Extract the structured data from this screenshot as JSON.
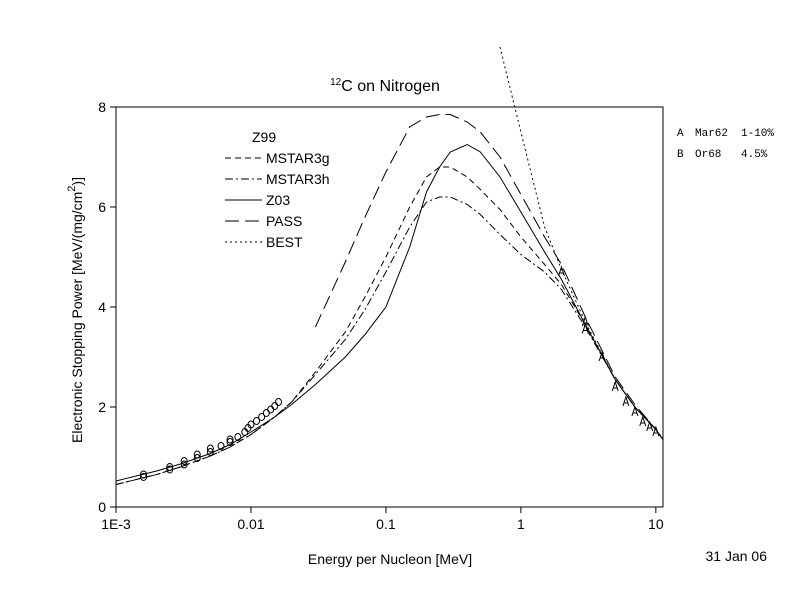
{
  "chart_data": {
    "type": "line",
    "title_superscript": "12",
    "title": "C on Nitrogen",
    "xlabel": "Energy per Nucleon [MeV]",
    "ylabel": "Electronic Stopping Power [MeV/(mg/cm",
    "ylabel_superscript": "2",
    "ylabel_end": ")]",
    "date": "31 Jan 06",
    "legend_title": "Z99",
    "xscale": "log",
    "xlim": [
      0.001,
      11.3
    ],
    "ylim": [
      0,
      8
    ],
    "xticks": [
      {
        "value": 0.001,
        "label": "1E-3"
      },
      0.01,
      0.1,
      1,
      10
    ],
    "yticks": [
      0,
      2,
      4,
      6,
      8
    ],
    "x": [
      0.001,
      0.002,
      0.003,
      0.005,
      0.007,
      0.01,
      0.015,
      0.02,
      0.03,
      0.05,
      0.07,
      0.1,
      0.15,
      0.2,
      0.25,
      0.3,
      0.4,
      0.5,
      0.7,
      1,
      1.5,
      2,
      3,
      5,
      7,
      10,
      11.3
    ],
    "series": [
      {
        "name": "MSTAR3g",
        "color": "#000000",
        "dash": "6,4",
        "values": [
          0.45,
          0.65,
          0.8,
          1.02,
          1.2,
          1.45,
          1.8,
          2.1,
          2.7,
          3.5,
          4.2,
          5.0,
          6.0,
          6.6,
          6.8,
          6.8,
          6.6,
          6.35,
          5.95,
          5.4,
          4.85,
          4.45,
          3.65,
          2.55,
          2.0,
          1.55,
          1.35
        ]
      },
      {
        "name": "MSTAR3h",
        "color": "#000000",
        "dash": "8,3,2,3",
        "values": [
          0.45,
          0.65,
          0.8,
          1.02,
          1.2,
          1.45,
          1.8,
          2.1,
          2.65,
          3.35,
          3.95,
          4.7,
          5.6,
          6.1,
          6.2,
          6.2,
          6.05,
          5.85,
          5.45,
          5.05,
          4.7,
          4.35,
          3.6,
          2.55,
          2.0,
          1.55,
          1.35
        ]
      },
      {
        "name": "Z03",
        "color": "#000000",
        "dash": "none",
        "values": [
          0.52,
          0.72,
          0.86,
          1.07,
          1.25,
          1.5,
          1.8,
          2.05,
          2.45,
          3.0,
          3.45,
          4.0,
          5.2,
          6.3,
          6.8,
          7.1,
          7.25,
          7.1,
          6.6,
          5.9,
          5.1,
          4.55,
          3.65,
          2.55,
          2.0,
          1.55,
          1.35
        ]
      },
      {
        "name": "PASS",
        "color": "#000000",
        "dash": "14,6",
        "values": [
          null,
          null,
          null,
          null,
          null,
          null,
          null,
          null,
          3.6,
          4.9,
          5.8,
          6.7,
          7.6,
          7.8,
          7.85,
          7.85,
          7.7,
          7.5,
          7.0,
          6.25,
          5.4,
          4.85,
          3.8,
          2.6,
          2.05,
          1.55,
          1.35
        ]
      },
      {
        "name": "BEST",
        "color": "#000000",
        "dash": "2,3",
        "values": [
          null,
          null,
          null,
          null,
          null,
          null,
          null,
          null,
          null,
          null,
          null,
          null,
          null,
          null,
          null,
          null,
          null,
          null,
          9.2,
          7.5,
          5.6,
          4.75,
          3.7,
          2.55,
          2.0,
          1.55,
          1.35
        ]
      }
    ],
    "data_sets": [
      {
        "symbol": "A",
        "name": "Mar62",
        "note": "1-10%",
        "x": [
          2,
          3,
          3,
          4,
          5,
          6,
          7,
          8,
          9,
          10
        ],
        "values": [
          4.7,
          3.7,
          3.55,
          3.0,
          2.4,
          2.1,
          1.9,
          1.7,
          1.6,
          1.5
        ]
      },
      {
        "symbol": "B",
        "name": "Or68",
        "note": "4.5%",
        "x": [
          0.0016,
          0.0016,
          0.0025,
          0.0025,
          0.0032,
          0.0032,
          0.004,
          0.004,
          0.005,
          0.005,
          0.006,
          0.007,
          0.007,
          0.008,
          0.009,
          0.0095,
          0.01,
          0.011,
          0.012,
          0.013,
          0.014,
          0.015,
          0.016
        ],
        "values": [
          0.6,
          0.65,
          0.75,
          0.8,
          0.85,
          0.92,
          0.98,
          1.05,
          1.1,
          1.17,
          1.22,
          1.3,
          1.35,
          1.4,
          1.5,
          1.58,
          1.65,
          1.72,
          1.8,
          1.88,
          1.95,
          2.02,
          2.1
        ]
      }
    ]
  }
}
